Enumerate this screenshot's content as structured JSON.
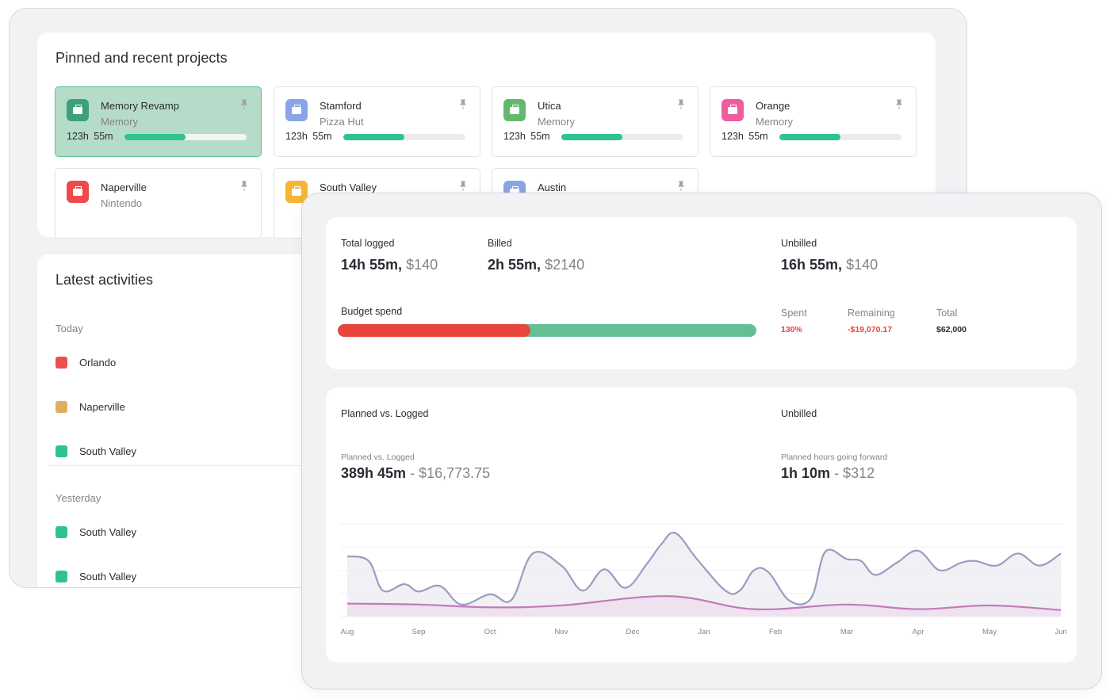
{
  "pinned": {
    "title": "Pinned and recent projects",
    "projects": [
      {
        "name": "Memory Revamp",
        "client": "Memory",
        "time": "123h 55m",
        "progress": 0.5,
        "color": "#3f9e7c",
        "active": true
      },
      {
        "name": "Stamford",
        "client": "Pizza Hut",
        "time": "123h 55m",
        "progress": 0.5,
        "color": "#8aa4e6",
        "active": false
      },
      {
        "name": "Utica",
        "client": "Memory",
        "time": "123h 55m",
        "progress": 0.5,
        "color": "#63b86e",
        "active": false
      },
      {
        "name": "Orange",
        "client": "Memory",
        "time": "123h 55m",
        "progress": 0.5,
        "color": "#ee5d9e",
        "active": false
      },
      {
        "name": "Naperville",
        "client": "Nintendo",
        "color": "#ef4a4a",
        "active": false
      },
      {
        "name": "South Valley",
        "client": "",
        "color": "#f6b533",
        "active": false
      },
      {
        "name": "Austin",
        "client": "",
        "color": "#8aa4e6",
        "active": false
      }
    ]
  },
  "activities": {
    "title": "Latest activities",
    "groups": [
      {
        "label": "Today",
        "items": [
          {
            "name": "Orlando",
            "color": "#ef4f4f"
          },
          {
            "name": "Naperville",
            "color": "#dfae62"
          },
          {
            "name": "South Valley",
            "color": "#2ec391"
          }
        ]
      },
      {
        "label": "Yesterday",
        "items": [
          {
            "name": "South Valley",
            "color": "#2ec391"
          },
          {
            "name": "South Valley",
            "color": "#2ec391"
          }
        ]
      }
    ]
  },
  "summary": {
    "total_logged": {
      "label": "Total logged",
      "time": "14h 55m,",
      "money": "$140"
    },
    "billed": {
      "label": "Billed",
      "time": "2h 55m,",
      "money": "$2140"
    },
    "unbilled": {
      "label": "Unbilled",
      "time": "16h 55m,",
      "money": "$140"
    },
    "budget": {
      "label": "Budget spend",
      "spent_fraction": 0.46,
      "spent": {
        "label": "Spent",
        "value": "130%",
        "color": "#e8453c"
      },
      "remaining": {
        "label": "Remaining",
        "value": "-$19,070.17",
        "color": "#e8453c"
      },
      "total": {
        "label": "Total",
        "value": "$62,000",
        "color": "#2b2b33"
      }
    }
  },
  "chart_panel": {
    "left_title": "Planned vs. Logged",
    "right_title": "Unbilled",
    "left_sub": "Planned vs. Logged",
    "left_time": "389h 45m",
    "left_money": "- $16,773.75",
    "right_sub": "Planned hours going forward",
    "right_time": "1h 10m",
    "right_money": "- $312"
  },
  "chart_data": {
    "type": "area",
    "categories": [
      "Aug",
      "Sep",
      "Oct",
      "Nov",
      "Dec",
      "Jan",
      "Feb",
      "Mar",
      "Apr",
      "May",
      "Jun"
    ],
    "ylim": [
      0,
      100
    ],
    "grid": true,
    "series": [
      {
        "color": "#9a9cc0",
        "fill": "#ececf2",
        "x": [
          0,
          0.3,
          0.5,
          0.8,
          1.0,
          1.3,
          1.6,
          2.0,
          2.3,
          2.6,
          3.0,
          3.3,
          3.6,
          3.9,
          4.2,
          4.4,
          4.6,
          4.9,
          5.3,
          5.5,
          5.7,
          5.9,
          6.2,
          6.5,
          6.7,
          7.0,
          7.2,
          7.4,
          7.7,
          8.0,
          8.3,
          8.6,
          8.8,
          9.1,
          9.4,
          9.7,
          10.0
        ],
        "values": [
          65,
          60,
          28,
          35,
          27,
          33,
          13,
          24,
          18,
          68,
          55,
          28,
          51,
          31,
          57,
          78,
          90,
          62,
          28,
          28,
          50,
          48,
          17,
          20,
          70,
          62,
          60,
          45,
          58,
          71,
          50,
          58,
          60,
          55,
          68,
          55,
          68
        ]
      },
      {
        "color": "#c27ab8",
        "fill": "#ecdcec",
        "x": [
          0,
          1,
          2,
          3,
          4.5,
          5.7,
          7.0,
          8.0,
          9.0,
          10.0
        ],
        "values": [
          14,
          13,
          10,
          12,
          22,
          8,
          13,
          8,
          12,
          7
        ]
      }
    ]
  }
}
